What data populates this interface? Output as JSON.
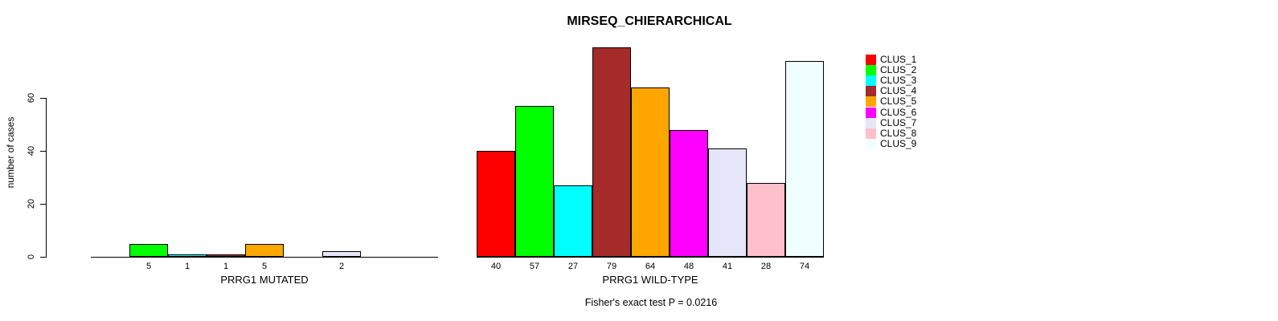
{
  "chart_data": {
    "type": "bar",
    "title": "MIRSEQ_CHIERARCHICAL",
    "ylabel": "number of cases",
    "yticks": [
      0,
      20,
      40,
      60
    ],
    "ylim": [
      0,
      80
    ],
    "grid": false,
    "legend_position": "top-right",
    "bar_border_color": "#000000",
    "clusters": [
      {
        "name": "CLUS_1",
        "color": "#FF0000"
      },
      {
        "name": "CLUS_2",
        "color": "#00FF00"
      },
      {
        "name": "CLUS_3",
        "color": "#00FFFF"
      },
      {
        "name": "CLUS_4",
        "color": "#A52A2A"
      },
      {
        "name": "CLUS_5",
        "color": "#FFA500"
      },
      {
        "name": "CLUS_6",
        "color": "#FF00FF"
      },
      {
        "name": "CLUS_7",
        "color": "#E6E6FA"
      },
      {
        "name": "CLUS_8",
        "color": "#FFC0CB"
      },
      {
        "name": "CLUS_9",
        "color": "#F0FFFF"
      }
    ],
    "groups": [
      {
        "label": "PRRG1 MUTATED",
        "values": [
          0,
          5,
          1,
          1,
          5,
          0,
          2,
          0,
          0
        ]
      },
      {
        "label": "PRRG1 WILD-TYPE",
        "values": [
          40,
          57,
          27,
          79,
          64,
          48,
          41,
          28,
          74
        ]
      }
    ],
    "annotation": "Fisher's exact test P = 0.0216"
  }
}
